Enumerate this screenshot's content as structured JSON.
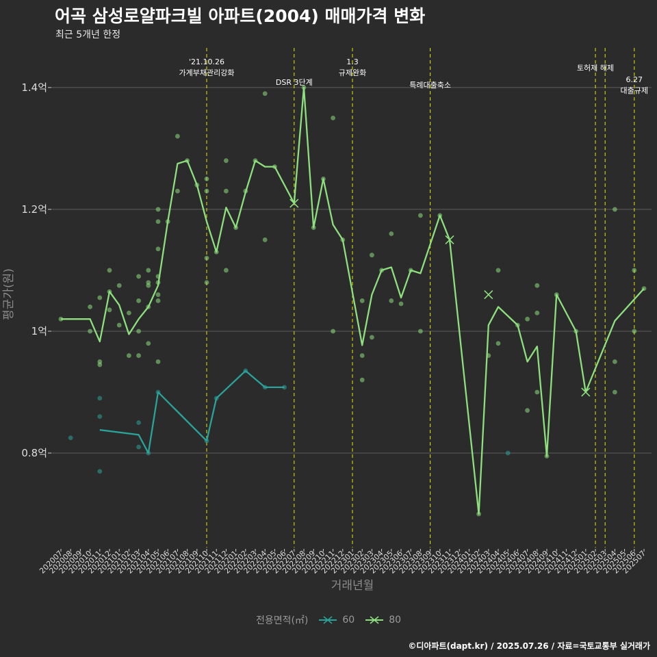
{
  "title": "어곡 삼성로얄파크빌 아파트(2004) 매매가격 변화",
  "subtitle": "최근 5개년 한정",
  "caption": "©디아파트(dapt.kr) / 2025.07.26 / 자료=국토교통부 실거래가",
  "legend": {
    "title": "전용면적(㎡)",
    "items": [
      {
        "label": "60",
        "color": "#2aa39a"
      },
      {
        "label": "80",
        "color": "#8ee07e"
      }
    ]
  },
  "chart_data": {
    "type": "line",
    "xlabel": "거래년월",
    "ylabel": "평균가(원)",
    "ylim": [
      0.645,
      1.465
    ],
    "y_ticks": [
      {
        "value": 0.8,
        "label": "0.8억"
      },
      {
        "value": 1.0,
        "label": "1억"
      },
      {
        "value": 1.2,
        "label": "1.2억"
      },
      {
        "value": 1.4,
        "label": "1.4억"
      }
    ],
    "categories": [
      "202007",
      "202008",
      "202009",
      "202010",
      "202011",
      "202012",
      "202101",
      "202102",
      "202103",
      "202104",
      "202105",
      "202106",
      "202107",
      "202108",
      "202109",
      "202110",
      "202111",
      "202112",
      "202201",
      "202202",
      "202203",
      "202204",
      "202205",
      "202206",
      "202207",
      "202208",
      "202209",
      "202210",
      "202211",
      "202212",
      "202301",
      "202302",
      "202303",
      "202304",
      "202305",
      "202306",
      "202307",
      "202308",
      "202309",
      "202310",
      "202311",
      "202312",
      "202401",
      "202402",
      "202403",
      "202404",
      "202405",
      "202406",
      "202407",
      "202408",
      "202409",
      "202410",
      "202411",
      "202412",
      "202501",
      "202502",
      "202503",
      "202504",
      "202505",
      "202506",
      "202507"
    ],
    "series": [
      {
        "name": "60",
        "color": "#2aa39a",
        "line": [
          [
            4,
            0.838
          ],
          [
            8,
            0.83
          ],
          [
            9,
            0.8
          ],
          [
            10,
            0.9
          ],
          [
            15,
            0.82
          ],
          [
            16,
            0.89
          ],
          [
            19,
            0.935
          ],
          [
            21,
            0.908
          ],
          [
            23,
            0.908
          ]
        ],
        "points": [
          [
            1,
            0.825
          ],
          [
            4,
            0.89
          ],
          [
            4,
            0.86
          ],
          [
            4,
            0.77
          ],
          [
            8,
            0.85
          ],
          [
            8,
            0.81
          ],
          [
            9,
            0.8
          ],
          [
            10,
            0.9
          ],
          [
            15,
            0.82
          ],
          [
            16,
            0.89
          ],
          [
            19,
            0.935
          ],
          [
            21,
            0.908
          ],
          [
            23,
            0.908
          ],
          [
            46,
            0.8
          ]
        ],
        "cancelled": []
      },
      {
        "name": "80",
        "color": "#8ee07e",
        "line": [
          [
            0,
            1.02
          ],
          [
            3,
            1.02
          ],
          [
            4,
            0.983
          ],
          [
            5,
            1.065
          ],
          [
            6,
            1.043
          ],
          [
            7,
            0.995
          ],
          [
            8,
            1.02
          ],
          [
            9,
            1.04
          ],
          [
            10,
            1.075
          ],
          [
            11,
            1.18
          ],
          [
            12,
            1.275
          ],
          [
            13,
            1.28
          ],
          [
            14,
            1.24
          ],
          [
            15,
            1.18
          ],
          [
            16,
            1.13
          ],
          [
            17,
            1.203
          ],
          [
            18,
            1.17
          ],
          [
            19,
            1.228
          ],
          [
            20,
            1.28
          ],
          [
            21,
            1.27
          ],
          [
            22,
            1.27
          ],
          [
            24,
            1.21
          ],
          [
            25,
            1.4
          ],
          [
            26,
            1.17
          ],
          [
            27,
            1.25
          ],
          [
            28,
            1.175
          ],
          [
            29,
            1.15
          ],
          [
            31,
            0.977
          ],
          [
            32,
            1.06
          ],
          [
            33,
            1.1
          ],
          [
            34,
            1.105
          ],
          [
            35,
            1.055
          ],
          [
            36,
            1.1
          ],
          [
            37,
            1.095
          ],
          [
            39,
            1.19
          ],
          [
            40,
            1.15
          ],
          [
            43,
            0.7
          ],
          [
            44,
            1.01
          ],
          [
            45,
            1.04
          ],
          [
            47,
            1.01
          ],
          [
            48,
            0.95
          ],
          [
            49,
            0.975
          ],
          [
            50,
            0.795
          ],
          [
            51,
            1.06
          ],
          [
            53,
            1.0
          ],
          [
            54,
            0.9
          ],
          [
            57,
            1.017
          ],
          [
            60,
            1.07
          ]
        ],
        "points": [
          [
            0,
            1.02
          ],
          [
            3,
            1.0
          ],
          [
            3,
            1.04
          ],
          [
            4,
            1.055
          ],
          [
            4,
            0.95
          ],
          [
            4,
            0.945
          ],
          [
            5,
            1.1
          ],
          [
            5,
            1.035
          ],
          [
            5,
            1.065
          ],
          [
            6,
            1.075
          ],
          [
            6,
            1.01
          ],
          [
            7,
            1.03
          ],
          [
            7,
            0.96
          ],
          [
            8,
            1.09
          ],
          [
            8,
            1.05
          ],
          [
            8,
            1.0
          ],
          [
            8,
            0.96
          ],
          [
            9,
            1.1
          ],
          [
            9,
            1.08
          ],
          [
            9,
            1.075
          ],
          [
            9,
            1.04
          ],
          [
            9,
            0.98
          ],
          [
            10,
            1.2
          ],
          [
            10,
            1.18
          ],
          [
            10,
            1.135
          ],
          [
            10,
            1.09
          ],
          [
            10,
            1.08
          ],
          [
            10,
            1.06
          ],
          [
            10,
            1.05
          ],
          [
            10,
            0.95
          ],
          [
            11,
            1.18
          ],
          [
            12,
            1.32
          ],
          [
            12,
            1.23
          ],
          [
            13,
            1.28
          ],
          [
            14,
            1.24
          ],
          [
            15,
            1.25
          ],
          [
            15,
            1.23
          ],
          [
            15,
            1.12
          ],
          [
            15,
            1.08
          ],
          [
            16,
            1.13
          ],
          [
            17,
            1.28
          ],
          [
            17,
            1.23
          ],
          [
            17,
            1.1
          ],
          [
            18,
            1.17
          ],
          [
            19,
            1.23
          ],
          [
            20,
            1.28
          ],
          [
            21,
            1.39
          ],
          [
            21,
            1.15
          ],
          [
            22,
            1.27
          ],
          [
            25,
            1.4
          ],
          [
            26,
            1.17
          ],
          [
            27,
            1.25
          ],
          [
            28,
            1.35
          ],
          [
            28,
            1.0
          ],
          [
            29,
            1.15
          ],
          [
            31,
            1.05
          ],
          [
            31,
            0.96
          ],
          [
            31,
            0.92
          ],
          [
            32,
            1.125
          ],
          [
            32,
            0.99
          ],
          [
            33,
            1.1
          ],
          [
            34,
            1.16
          ],
          [
            34,
            1.05
          ],
          [
            35,
            1.045
          ],
          [
            36,
            1.1
          ],
          [
            37,
            1.19
          ],
          [
            37,
            1.0
          ],
          [
            39,
            1.19
          ],
          [
            43,
            0.7
          ],
          [
            44,
            0.96
          ],
          [
            45,
            1.1
          ],
          [
            45,
            0.98
          ],
          [
            47,
            1.01
          ],
          [
            48,
            1.02
          ],
          [
            48,
            0.87
          ],
          [
            49,
            1.075
          ],
          [
            49,
            1.03
          ],
          [
            49,
            0.9
          ],
          [
            50,
            0.795
          ],
          [
            51,
            1.06
          ],
          [
            53,
            1.0
          ],
          [
            57,
            1.2
          ],
          [
            57,
            0.95
          ],
          [
            57,
            0.9
          ],
          [
            59,
            1.1
          ],
          [
            59,
            1.0
          ],
          [
            60,
            1.07
          ]
        ],
        "cancelled": [
          [
            24,
            1.21
          ],
          [
            40,
            1.15
          ],
          [
            44,
            1.06
          ],
          [
            54,
            0.9
          ]
        ]
      }
    ],
    "events": [
      {
        "x": 15,
        "lines": [
          "'21.10.26",
          "가계부채관리강화"
        ]
      },
      {
        "x": 24,
        "lines": [
          "DSR 3단계"
        ]
      },
      {
        "x": 30,
        "lines": [
          "1.3",
          "규제완화"
        ]
      },
      {
        "x": 38,
        "lines": [
          "특례대출축소"
        ]
      },
      {
        "x": 55,
        "lines": [
          "토허제 해제"
        ]
      },
      {
        "x": 56,
        "lines": []
      },
      {
        "x": 59,
        "lines": [
          "6.27",
          "대출규제"
        ]
      }
    ]
  }
}
